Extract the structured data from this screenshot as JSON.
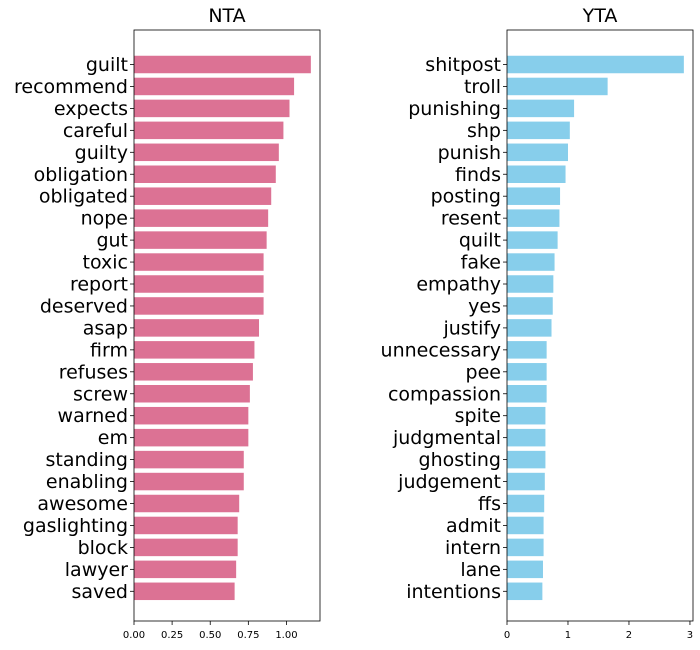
{
  "chart_data": [
    {
      "type": "bar",
      "orientation": "horizontal",
      "title": "NTA",
      "color": "#dc7294",
      "categories": [
        "guilt",
        "recommend",
        "expects",
        "careful",
        "guilty",
        "obligation",
        "obligated",
        "nope",
        "gut",
        "toxic",
        "report",
        "deserved",
        "asap",
        "firm",
        "refuses",
        "screw",
        "warned",
        "em",
        "standing",
        "enabling",
        "awesome",
        "gaslighting",
        "block",
        "lawyer",
        "saved"
      ],
      "values": [
        1.16,
        1.05,
        1.02,
        0.98,
        0.95,
        0.93,
        0.9,
        0.88,
        0.87,
        0.85,
        0.85,
        0.85,
        0.82,
        0.79,
        0.78,
        0.76,
        0.75,
        0.75,
        0.72,
        0.72,
        0.69,
        0.68,
        0.68,
        0.67,
        0.66
      ],
      "xlim": [
        0,
        1.22
      ],
      "xticks": [
        "0.00",
        "0.25",
        "0.50",
        "0.75",
        "1.00"
      ],
      "xtick_values": [
        0,
        0.25,
        0.5,
        0.75,
        1.0
      ],
      "grid": false
    },
    {
      "type": "bar",
      "orientation": "horizontal",
      "title": "YTA",
      "color": "#87ceeb",
      "categories": [
        "shitpost",
        "troll",
        "punishing",
        "shp",
        "punish",
        "finds",
        "posting",
        "resent",
        "quilt",
        "fake",
        "empathy",
        "yes",
        "justify",
        "unnecessary",
        "pee",
        "compassion",
        "spite",
        "judgmental",
        "ghosting",
        "judgement",
        "ffs",
        "admit",
        "intern",
        "lane",
        "intentions"
      ],
      "values": [
        2.9,
        1.65,
        1.1,
        1.03,
        1.0,
        0.96,
        0.87,
        0.86,
        0.83,
        0.78,
        0.76,
        0.75,
        0.73,
        0.65,
        0.65,
        0.65,
        0.63,
        0.63,
        0.63,
        0.62,
        0.61,
        0.6,
        0.6,
        0.59,
        0.58
      ],
      "xlim": [
        0,
        3.05
      ],
      "xticks": [
        "0",
        "1",
        "2",
        "3"
      ],
      "xtick_values": [
        0,
        1,
        2,
        3
      ],
      "grid": false
    }
  ]
}
